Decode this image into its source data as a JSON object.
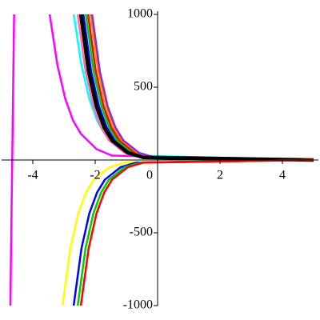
{
  "chart_data": {
    "type": "line",
    "xlim": [
      -5,
      5
    ],
    "ylim": [
      -1000,
      1000
    ],
    "xticks": [
      -4,
      -2,
      0,
      2,
      4
    ],
    "yticks": [
      -1000,
      -500,
      500,
      1000
    ],
    "series": [
      {
        "color": "#ff00ff",
        "x": [
          -4.72,
          -4.6,
          -4.0,
          -3.46,
          -3.21,
          -2.96,
          -2.71,
          -2.46,
          -1.96,
          -1.46,
          5
        ],
        "values": [
          -1000,
          1000,
          null,
          1000,
          650,
          420,
          270,
          180,
          75,
          30,
          0
        ]
      },
      {
        "color": "#00ffff",
        "x": [
          -2.69,
          -2.44,
          -2.19,
          -1.94,
          -1.69,
          -1.19,
          -0.69,
          5
        ],
        "values": [
          1000,
          650,
          420,
          270,
          180,
          75,
          30,
          0
        ]
      },
      {
        "color": "#ff66cc",
        "x": [
          -2.56,
          -2.31,
          -2.06,
          -1.81,
          -1.56,
          -1.06,
          -0.56,
          5
        ],
        "values": [
          1000,
          607,
          368,
          223,
          135,
          50,
          18,
          0
        ]
      },
      {
        "color": "#ffd700",
        "x": [
          -2.5,
          -2.25,
          -2.0,
          -1.75,
          -1.5,
          -1.0,
          -0.5,
          5
        ],
        "values": [
          1000,
          607,
          368,
          223,
          135,
          50,
          18,
          0
        ]
      },
      {
        "color": "#0000ff",
        "x": [
          -2.38,
          -2.13,
          -1.88,
          -1.63,
          -1.38,
          -0.88,
          -0.38,
          5
        ],
        "values": [
          1000,
          607,
          368,
          223,
          135,
          50,
          18,
          0
        ]
      },
      {
        "color": "#00cc00",
        "x": [
          -2.3,
          -2.05,
          -1.8,
          -1.55,
          -1.3,
          -0.8,
          -0.3,
          5
        ],
        "values": [
          1000,
          607,
          368,
          223,
          135,
          50,
          18,
          0
        ]
      },
      {
        "color": "#ff0000",
        "x": [
          -2.23,
          -1.98,
          -1.73,
          -1.48,
          -1.23,
          -0.73,
          -0.23,
          5
        ],
        "values": [
          1000,
          607,
          368,
          223,
          135,
          50,
          18,
          0
        ]
      },
      {
        "color": "#ff8c00",
        "x": [
          -2.15,
          -1.9,
          -1.65,
          -1.4,
          -1.15,
          -0.65,
          -0.15,
          5
        ],
        "values": [
          1000,
          607,
          368,
          223,
          135,
          50,
          18,
          0
        ]
      },
      {
        "color": "#8a2be2",
        "x": [
          -2.1,
          -1.85,
          -1.6,
          -1.35,
          -1.1,
          -0.6,
          -0.1,
          5
        ],
        "values": [
          1000,
          607,
          368,
          223,
          135,
          50,
          18,
          0
        ]
      },
      {
        "color": "#000000",
        "x": [
          -2.46,
          -2.21,
          -1.96,
          -1.71,
          -1.46,
          -0.96,
          -0.46,
          5
        ],
        "values": [
          1000,
          607,
          368,
          223,
          135,
          50,
          18,
          0
        ]
      },
      {
        "color": "#ffff00",
        "x": [
          -3.05,
          -2.8,
          -2.55,
          -2.3,
          -2.05,
          -1.55,
          -1.05,
          5
        ],
        "values": [
          -1000,
          -607,
          -368,
          -223,
          -135,
          -50,
          -18,
          0
        ]
      },
      {
        "color": "#0000ff",
        "x": [
          -2.69,
          -2.44,
          -2.19,
          -1.94,
          -1.69,
          -1.19,
          -0.69,
          5
        ],
        "values": [
          -1000,
          -607,
          -368,
          -223,
          -135,
          -50,
          -18,
          0
        ]
      },
      {
        "color": "#00cc00",
        "x": [
          -2.56,
          -2.31,
          -2.06,
          -1.81,
          -1.56,
          -1.06,
          -0.56,
          5
        ],
        "values": [
          -1000,
          -607,
          -368,
          -223,
          -135,
          -50,
          -18,
          0
        ]
      },
      {
        "color": "#ff0000",
        "x": [
          -2.46,
          -2.21,
          -1.96,
          -1.71,
          -1.46,
          -0.96,
          -0.46,
          5
        ],
        "values": [
          -1000,
          -607,
          -368,
          -223,
          -135,
          -50,
          -18,
          0
        ]
      }
    ]
  }
}
